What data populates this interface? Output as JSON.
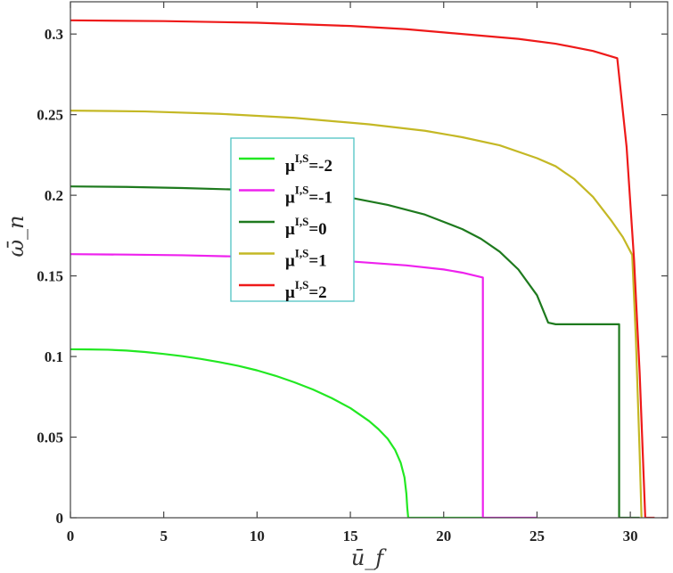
{
  "chart_data": {
    "type": "line",
    "xlabel": "ū_f",
    "ylabel": "ω̄_n",
    "xlim": [
      0,
      32
    ],
    "ylim": [
      0,
      0.32
    ],
    "x_ticks": [
      0,
      5,
      10,
      15,
      20,
      25,
      30
    ],
    "x_tick_labels": [
      "0",
      "5",
      "10",
      "15",
      "20",
      "25",
      "30"
    ],
    "y_ticks": [
      0,
      0.05,
      0.1,
      0.15,
      0.2,
      0.25,
      0.3
    ],
    "y_tick_labels": [
      "0",
      "0.05",
      "0.1",
      "0.15",
      "0.2",
      "0.25",
      "0.3"
    ],
    "grid": false,
    "legend_position": "center-left",
    "series": [
      {
        "name": "μ^{I,S}=-2",
        "legend_label": "μ",
        "legend_sup": "I,S",
        "legend_suffix": "=-2",
        "color": "#22e822",
        "points": [
          [
            0,
            0.1045
          ],
          [
            1,
            0.1044
          ],
          [
            2,
            0.1042
          ],
          [
            3,
            0.1037
          ],
          [
            4,
            0.1028
          ],
          [
            5,
            0.1016
          ],
          [
            6,
            0.1002
          ],
          [
            7,
            0.0985
          ],
          [
            8,
            0.0965
          ],
          [
            9,
            0.0942
          ],
          [
            10,
            0.0914
          ],
          [
            11,
            0.088
          ],
          [
            12,
            0.084
          ],
          [
            13,
            0.0795
          ],
          [
            14,
            0.0742
          ],
          [
            15,
            0.068
          ],
          [
            16,
            0.06
          ],
          [
            16.5,
            0.055
          ],
          [
            17,
            0.049
          ],
          [
            17.4,
            0.042
          ],
          [
            17.7,
            0.034
          ],
          [
            17.9,
            0.025
          ],
          [
            18.0,
            0.015
          ],
          [
            18.05,
            0.006
          ],
          [
            18.1,
            0
          ],
          [
            22.1,
            0
          ]
        ]
      },
      {
        "name": "μ^{I,S}=-1",
        "legend_label": "μ",
        "legend_sup": "I,S",
        "legend_suffix": "=-1",
        "color": "#ee22ee",
        "points": [
          [
            0,
            0.1635
          ],
          [
            3,
            0.1632
          ],
          [
            6,
            0.1628
          ],
          [
            9,
            0.162
          ],
          [
            12,
            0.1608
          ],
          [
            15,
            0.159
          ],
          [
            18,
            0.1565
          ],
          [
            20,
            0.154
          ],
          [
            21,
            0.152
          ],
          [
            22.1,
            0.149
          ],
          [
            22.1,
            0
          ],
          [
            25,
            0
          ]
        ]
      },
      {
        "name": "μ^{I,S}=0",
        "legend_label": "μ",
        "legend_sup": "I,S",
        "legend_suffix": "=0",
        "color": "#1e7a1e",
        "points": [
          [
            0,
            0.2055
          ],
          [
            3,
            0.2052
          ],
          [
            6,
            0.2045
          ],
          [
            9,
            0.2035
          ],
          [
            12,
            0.2018
          ],
          [
            15,
            0.1985
          ],
          [
            17,
            0.194
          ],
          [
            19,
            0.188
          ],
          [
            21,
            0.179
          ],
          [
            22,
            0.173
          ],
          [
            23,
            0.165
          ],
          [
            24,
            0.154
          ],
          [
            25,
            0.138
          ],
          [
            25.6,
            0.121
          ],
          [
            26,
            0.12
          ],
          [
            29.4,
            0.12
          ],
          [
            29.4,
            0
          ],
          [
            30.5,
            0
          ]
        ]
      },
      {
        "name": "μ^{I,S}=1",
        "legend_label": "μ",
        "legend_sup": "I,S",
        "legend_suffix": "=1",
        "color": "#c4b825",
        "points": [
          [
            0,
            0.2525
          ],
          [
            4,
            0.252
          ],
          [
            8,
            0.2505
          ],
          [
            12,
            0.248
          ],
          [
            16,
            0.244
          ],
          [
            19,
            0.24
          ],
          [
            21,
            0.236
          ],
          [
            23,
            0.231
          ],
          [
            25,
            0.223
          ],
          [
            26,
            0.218
          ],
          [
            27,
            0.21
          ],
          [
            28,
            0.199
          ],
          [
            29,
            0.184
          ],
          [
            29.6,
            0.174
          ],
          [
            30.1,
            0.163
          ],
          [
            30.3,
            0.11
          ],
          [
            30.5,
            0.04
          ],
          [
            30.6,
            0
          ]
        ]
      },
      {
        "name": "μ^{I,S}=2",
        "legend_label": "μ",
        "legend_sup": "I,S",
        "legend_suffix": "=2",
        "color": "#ee1a1a",
        "points": [
          [
            0,
            0.3085
          ],
          [
            5,
            0.308
          ],
          [
            10,
            0.307
          ],
          [
            15,
            0.305
          ],
          [
            18,
            0.303
          ],
          [
            20,
            0.301
          ],
          [
            22,
            0.299
          ],
          [
            24,
            0.297
          ],
          [
            26,
            0.294
          ],
          [
            28,
            0.2895
          ],
          [
            29.3,
            0.285
          ],
          [
            29.8,
            0.23
          ],
          [
            30.2,
            0.16
          ],
          [
            30.5,
            0.09
          ],
          [
            30.7,
            0.03
          ],
          [
            30.8,
            0
          ],
          [
            31.3,
            0
          ]
        ]
      }
    ]
  }
}
